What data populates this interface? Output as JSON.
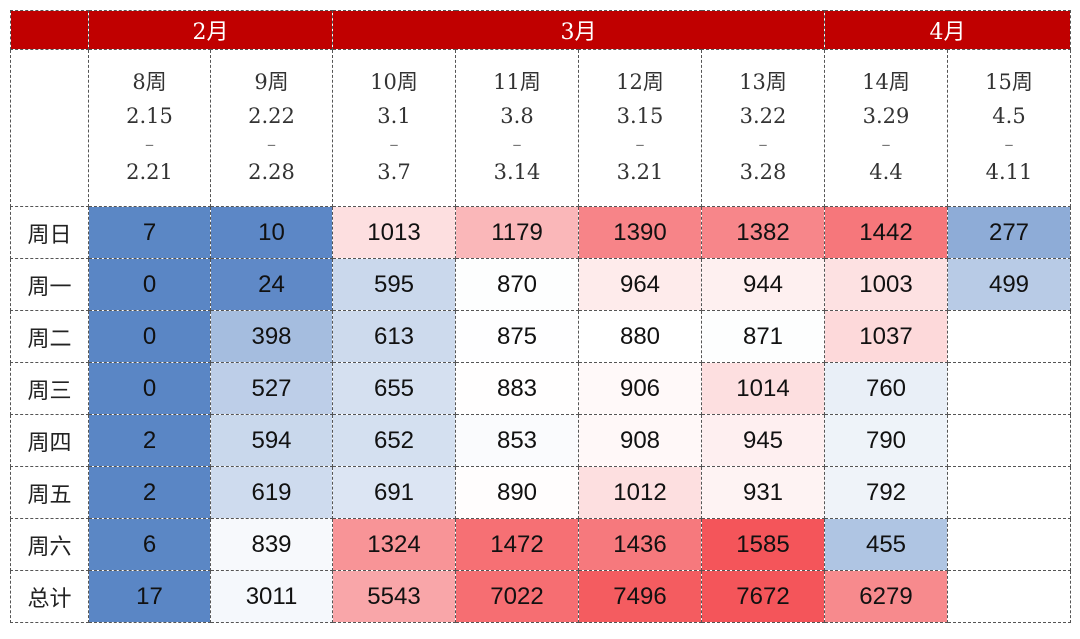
{
  "colors": {
    "header_bg": "#c00000",
    "low": "#5a86c5",
    "mid": "#ffffff",
    "high": "#f4555a"
  },
  "months": [
    {
      "label": "2月",
      "span": 2
    },
    {
      "label": "3月",
      "span": 4
    },
    {
      "label": "4月",
      "span": 2
    }
  ],
  "chart_data": {
    "type": "heatmap",
    "columns": [
      {
        "week": "8周",
        "start": "2.15",
        "sep": "–",
        "end": "2.21"
      },
      {
        "week": "9周",
        "start": "2.22",
        "sep": "–",
        "end": "2.28"
      },
      {
        "week": "10周",
        "start": "3.1",
        "sep": "–",
        "end": "3.7"
      },
      {
        "week": "11周",
        "start": "3.8",
        "sep": "–",
        "end": "3.14"
      },
      {
        "week": "12周",
        "start": "3.15",
        "sep": "–",
        "end": "3.21"
      },
      {
        "week": "13周",
        "start": "3.22",
        "sep": "–",
        "end": "3.28"
      },
      {
        "week": "14周",
        "start": "3.29",
        "sep": "–",
        "end": "4.4"
      },
      {
        "week": "15周",
        "start": "4.5",
        "sep": "–",
        "end": "4.11"
      }
    ],
    "rows": [
      {
        "label": "周日",
        "values": [
          7,
          10,
          1013,
          1179,
          1390,
          1382,
          1442,
          277
        ]
      },
      {
        "label": "周一",
        "values": [
          0,
          24,
          595,
          870,
          964,
          944,
          1003,
          499
        ]
      },
      {
        "label": "周二",
        "values": [
          0,
          398,
          613,
          875,
          880,
          871,
          1037,
          null
        ]
      },
      {
        "label": "周三",
        "values": [
          0,
          527,
          655,
          883,
          906,
          1014,
          760,
          null
        ]
      },
      {
        "label": "周四",
        "values": [
          2,
          594,
          652,
          853,
          908,
          945,
          790,
          null
        ]
      },
      {
        "label": "周五",
        "values": [
          2,
          619,
          691,
          890,
          1012,
          931,
          792,
          null
        ]
      },
      {
        "label": "周六",
        "values": [
          6,
          839,
          1324,
          1472,
          1436,
          1585,
          455,
          null
        ]
      },
      {
        "label": "总计",
        "values": [
          17,
          3011,
          5543,
          7022,
          7496,
          7672,
          6279,
          null
        ]
      }
    ]
  }
}
